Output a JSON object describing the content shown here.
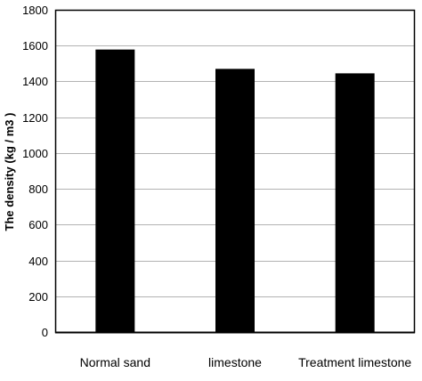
{
  "chart_data": {
    "type": "bar",
    "title": "",
    "xlabel": "",
    "ylabel": "The density (kg / m3 )",
    "categories": [
      "Normal sand",
      "limestone",
      "Treatment limestone"
    ],
    "values": [
      1578,
      1470,
      1445
    ],
    "ylim": [
      0,
      1800
    ],
    "yticks": [
      0,
      200,
      400,
      600,
      800,
      1000,
      1200,
      1400,
      1600,
      1800
    ],
    "grid": true,
    "legend": "none",
    "bar_color": "#000000",
    "grid_color": "#b3b3b3",
    "axis_color": "#000000"
  }
}
